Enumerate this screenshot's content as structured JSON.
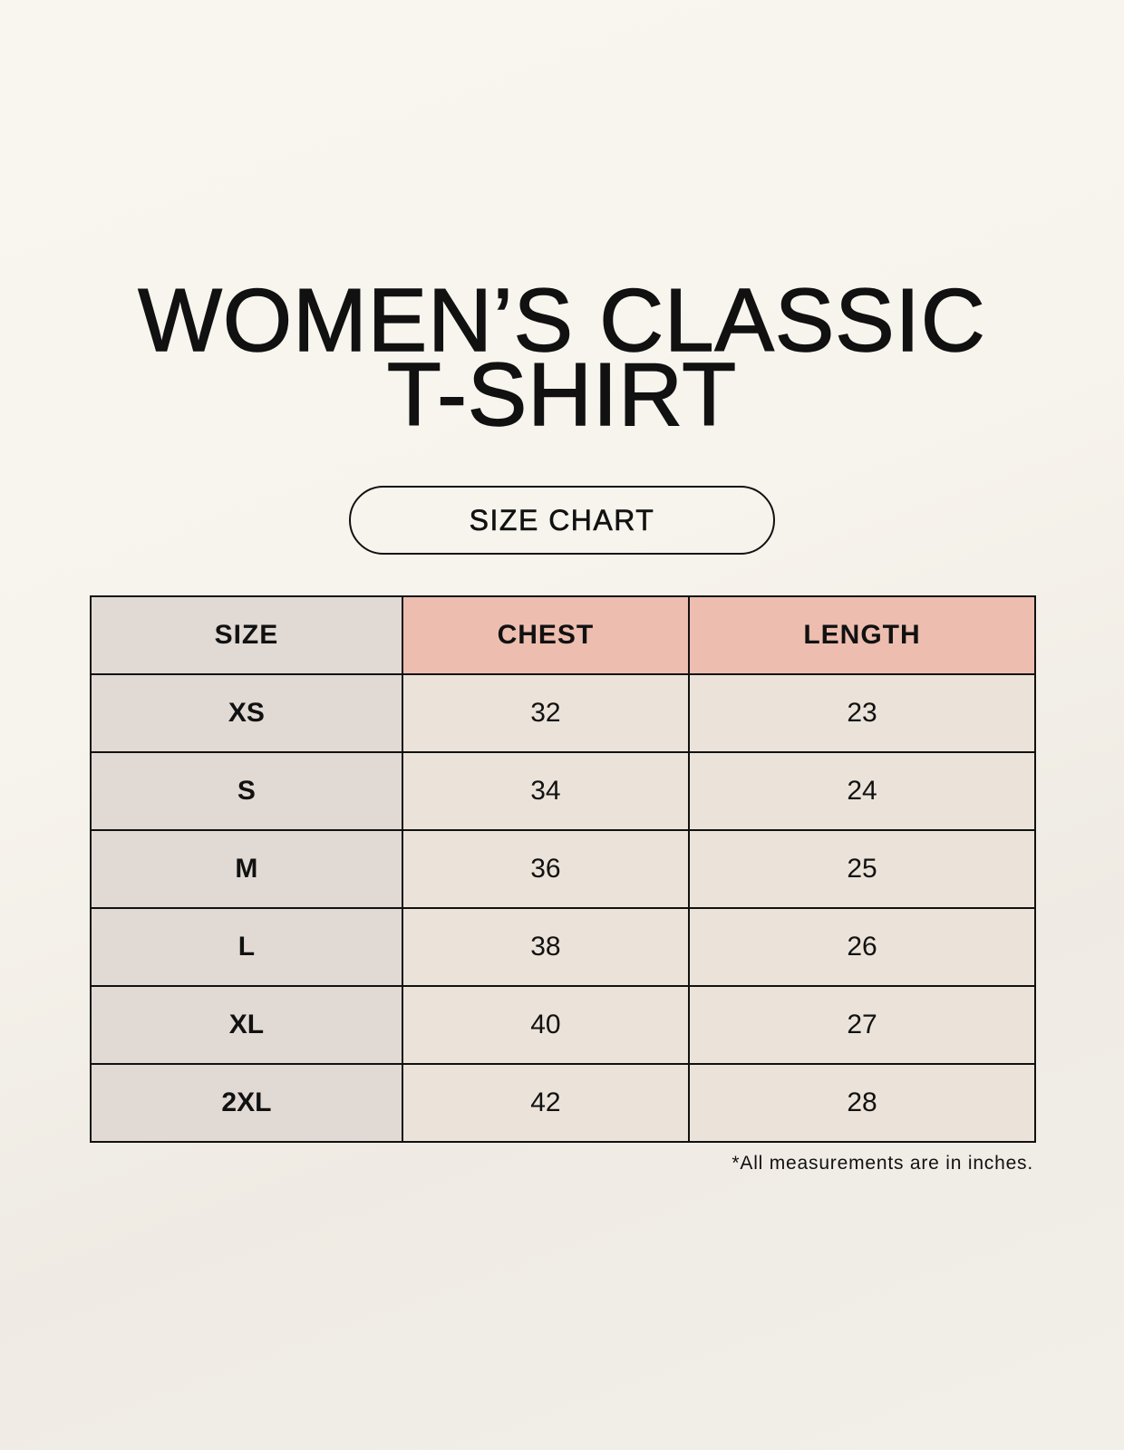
{
  "title": {
    "line1": "WOMEN’S CLASSIC",
    "line2": "T-SHIRT"
  },
  "subtitle": "SIZE CHART",
  "table": {
    "headers": [
      "SIZE",
      "CHEST",
      "LENGTH"
    ],
    "rows": [
      [
        "XS",
        "32",
        "23"
      ],
      [
        "S",
        "34",
        "24"
      ],
      [
        "M",
        "36",
        "25"
      ],
      [
        "L",
        "38",
        "26"
      ],
      [
        "XL",
        "40",
        "27"
      ],
      [
        "2XL",
        "42",
        "28"
      ]
    ]
  },
  "footnote": "*All measurements are in inches.",
  "colors": {
    "size_column": "#e1d9d4",
    "header_accent": "#edbdaf",
    "value_cells": "#ebe3d9"
  }
}
